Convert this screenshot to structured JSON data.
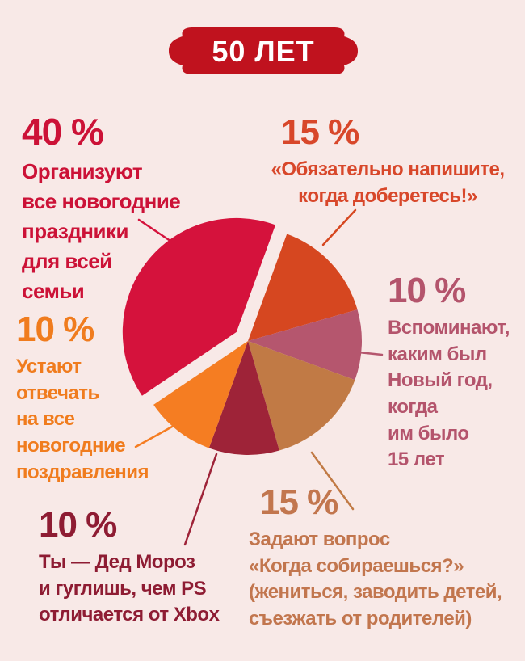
{
  "page": {
    "background": "#f8e9e7"
  },
  "badge": {
    "label": "50 ЛЕТ",
    "bg": "#c0121e",
    "text_color": "#ffffff"
  },
  "labels": {
    "organize": {
      "pct": "40 %",
      "text": "Организуют\nвсе новогодние\nпраздники\nдля всей\nсемьи",
      "color": "#cc1237"
    },
    "write_when_arrive": {
      "pct": "15 %",
      "text": "«Обязательно напишите,\nкогда доберетесь!»",
      "color": "#d8472a"
    },
    "remember": {
      "pct": "10 %",
      "text": "Вспоминают,\nкаким был\nНовый год,\nкогда\nим было\n15 лет",
      "color": "#b4546c"
    },
    "tired": {
      "pct": "10 %",
      "text": "Устают\nотвечать\nна все\nновогодние\nпоздравления",
      "color": "#f07c1e"
    },
    "ded_moroz": {
      "pct": "10 %",
      "text": "Ты — Дед Мороз\nи гуглишь, чем PS\nотличается от Xbox",
      "color": "#8e1c33"
    },
    "questions": {
      "pct": "15 %",
      "text": "Задают вопрос\n«Когда собираешься?»\n(жениться, заводить детей,\nсъезжать от родителей)",
      "color": "#c2764e"
    }
  },
  "chart_data": {
    "type": "pie",
    "title": "50 ЛЕТ",
    "unit": "percent",
    "start_angle_deg": 70,
    "direction": "clockwise",
    "slices": [
      {
        "label": "«Обязательно напишите, когда доберетесь!»",
        "value": 15,
        "color": "#d64720",
        "exploded": false
      },
      {
        "label": "Вспоминают, каким был Новый год, когда им было 15 лет",
        "value": 10,
        "color": "#b5566e",
        "exploded": false
      },
      {
        "label": "Задают вопрос «Когда собираешься?» (жениться, заводить детей, съезжать от родителей)",
        "value": 15,
        "color": "#c17a45",
        "exploded": false
      },
      {
        "label": "Ты — Дед Мороз и гуглишь, чем PS отличается от Xbox",
        "value": 10,
        "color": "#9e2338",
        "exploded": false
      },
      {
        "label": "Устают отвечать на все новогодние поздравления",
        "value": 10,
        "color": "#f57d22",
        "exploded": false
      },
      {
        "label": "Организуют все новогодние праздники для всей семьи",
        "value": 40,
        "color": "#d5123c",
        "exploded": true
      }
    ]
  }
}
